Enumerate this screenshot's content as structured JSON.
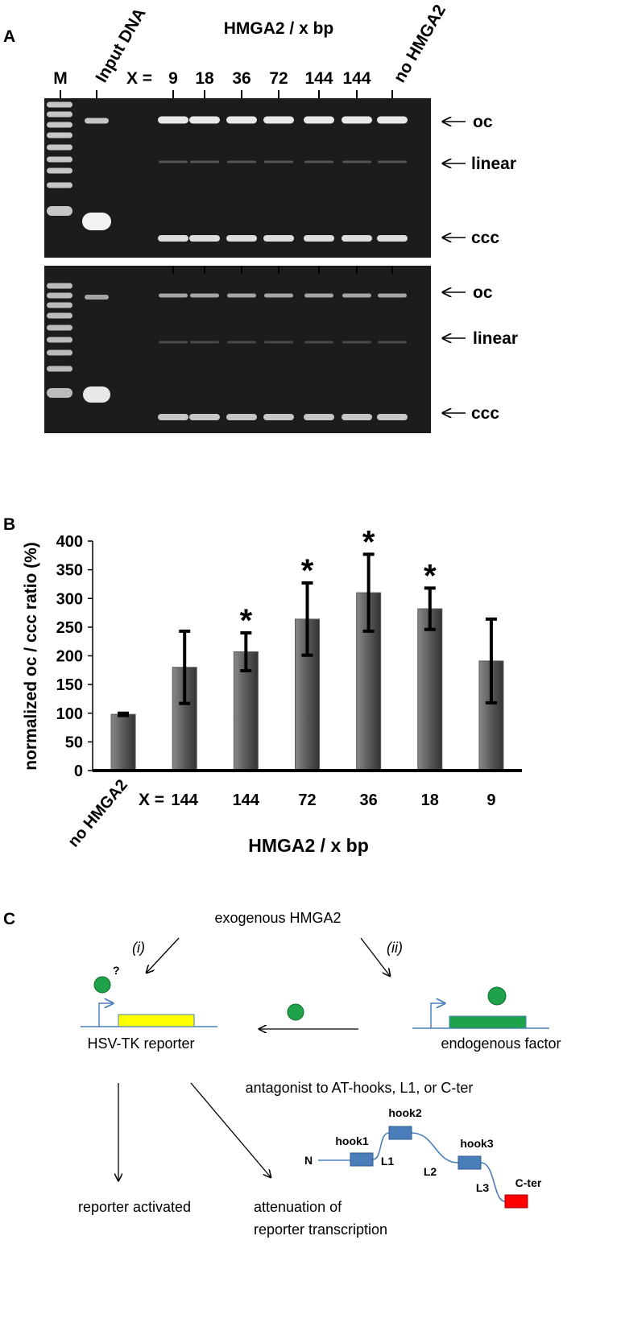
{
  "panel_a": {
    "letter": "A",
    "title": "HMGA2 / x bp",
    "lanes": [
      "M",
      "Input DNA",
      "9",
      "18",
      "36",
      "72",
      "144",
      "144",
      "no HMGA2"
    ],
    "x_prefix": "X =",
    "bands": [
      "oc",
      "linear",
      "ccc"
    ]
  },
  "chart_data": {
    "type": "bar",
    "panel": "B",
    "ylabel": "normalized oc / ccc ratio (%)",
    "xlabel": "HMGA2 / x bp",
    "x_prefix": "X =",
    "categories": [
      "no HMGA2",
      "144",
      "144",
      "72",
      "36",
      "18",
      "9"
    ],
    "values": [
      98,
      180,
      207,
      264,
      310,
      282,
      191
    ],
    "errors": [
      2,
      63,
      33,
      63,
      67,
      36,
      73
    ],
    "color": "#5a5a5a",
    "error_color": "#000000",
    "significant": [
      false,
      false,
      true,
      true,
      true,
      true,
      false
    ],
    "significance_marker": "*",
    "ylim": [
      0,
      400
    ],
    "yticks": [
      0,
      50,
      100,
      150,
      200,
      250,
      300,
      350,
      400
    ]
  },
  "panel_c": {
    "letter": "C",
    "source": "exogenous HMGA2",
    "path_i": "(i)",
    "path_ii": "(ii)",
    "question": "?",
    "reporter": "HSV-TK  reporter",
    "factor": "endogenous factor",
    "antagonist": "antagonist to AT-hooks, L1, or C-ter",
    "protein": {
      "n": "N",
      "hook1": "hook1",
      "hook2": "hook2",
      "hook3": "hook3",
      "l1": "L1",
      "l2": "L2",
      "l3": "L3",
      "cter": "C-ter"
    },
    "outcome_1": "reporter activated",
    "outcome_2a": "attenuation of",
    "outcome_2b": "reporter transcription"
  }
}
